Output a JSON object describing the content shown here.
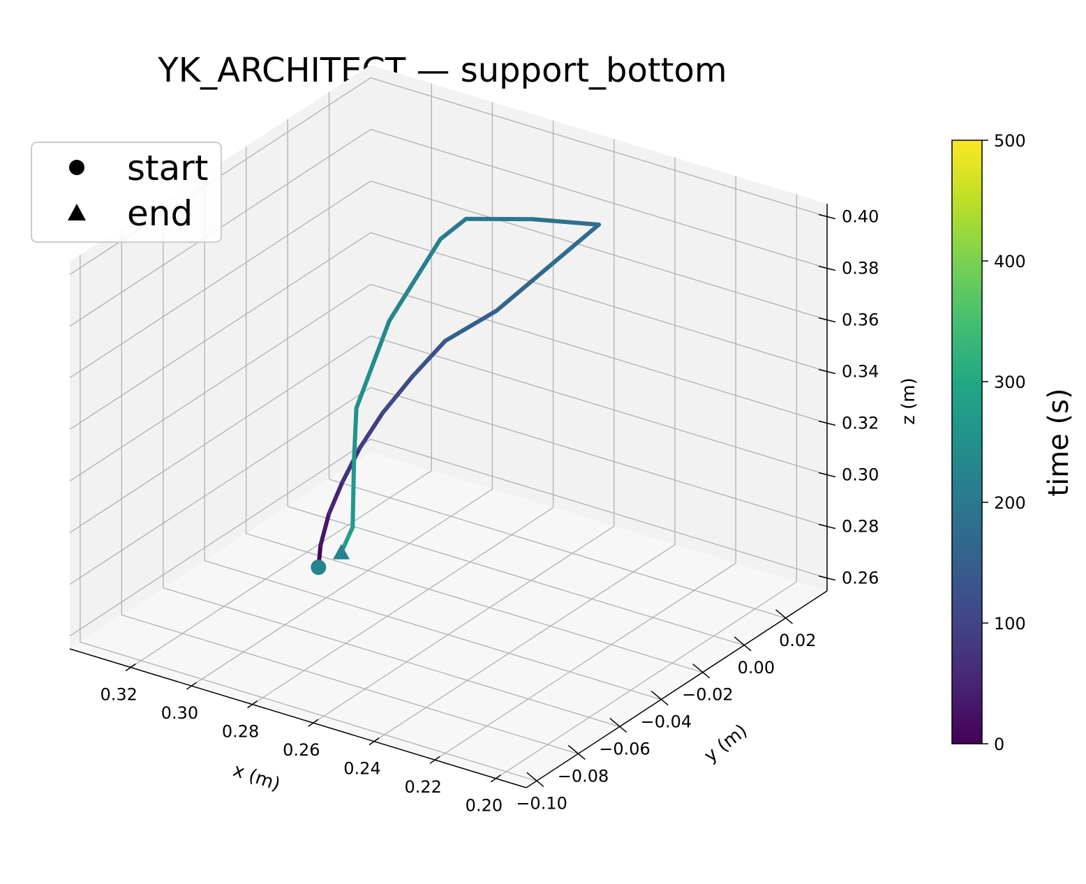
{
  "chart_data": {
    "type": "line3d",
    "title": "YK_ARCHITECT — support_bottom",
    "xlabel": "x (m)",
    "ylabel": "y (m)",
    "zlabel": "z (m)",
    "xlim": [
      0.19,
      0.34
    ],
    "ylim": [
      -0.105,
      0.04
    ],
    "zlim": [
      0.255,
      0.405
    ],
    "x_ticks": [
      "0.20",
      "0.22",
      "0.24",
      "0.26",
      "0.28",
      "0.30",
      "0.32"
    ],
    "y_ticks": [
      "−0.10",
      "−0.08",
      "−0.06",
      "−0.04",
      "−0.02",
      "0.00",
      "0.02"
    ],
    "z_ticks": [
      "0.26",
      "0.28",
      "0.30",
      "0.32",
      "0.34",
      "0.36",
      "0.38",
      "0.40"
    ],
    "grid": true,
    "legend_position": "top-left",
    "legend": [
      {
        "label": "start",
        "marker": "circle"
      },
      {
        "label": "end",
        "marker": "triangle"
      }
    ],
    "colorbar": {
      "label": "time (s)",
      "range": [
        0,
        500
      ],
      "ticks": [
        "0",
        "100",
        "200",
        "300",
        "400",
        "500"
      ],
      "colormap": "viridis"
    },
    "series": [
      {
        "t": [
          0,
          20,
          40,
          60,
          80,
          100,
          120,
          140,
          160,
          170,
          180,
          190,
          200,
          210,
          220,
          230,
          240,
          250,
          260,
          270,
          280
        ],
        "x": [
          0.306,
          0.306,
          0.306,
          0.305,
          0.304,
          0.302,
          0.299,
          0.295,
          0.285,
          0.275,
          0.265,
          0.28,
          0.295,
          0.3,
          0.305,
          0.31,
          0.312,
          0.314,
          0.31,
          0.305,
          0.306
        ],
        "y": [
          -0.035,
          -0.034,
          -0.03,
          -0.025,
          -0.018,
          -0.01,
          0.0,
          0.01,
          0.02,
          0.03,
          0.04,
          0.03,
          0.02,
          0.015,
          0.01,
          0.005,
          0.0,
          -0.005,
          -0.012,
          -0.02,
          -0.024
        ],
        "z": [
          0.262,
          0.27,
          0.28,
          0.29,
          0.3,
          0.31,
          0.32,
          0.33,
          0.34,
          0.355,
          0.37,
          0.372,
          0.372,
          0.365,
          0.35,
          0.335,
          0.32,
          0.305,
          0.29,
          0.27,
          0.262
        ]
      }
    ]
  },
  "colors": {
    "start_marker": "#25858e",
    "end_marker": "#26828e",
    "grid": "#b0b0b0",
    "pane": "#f2f2f2"
  }
}
